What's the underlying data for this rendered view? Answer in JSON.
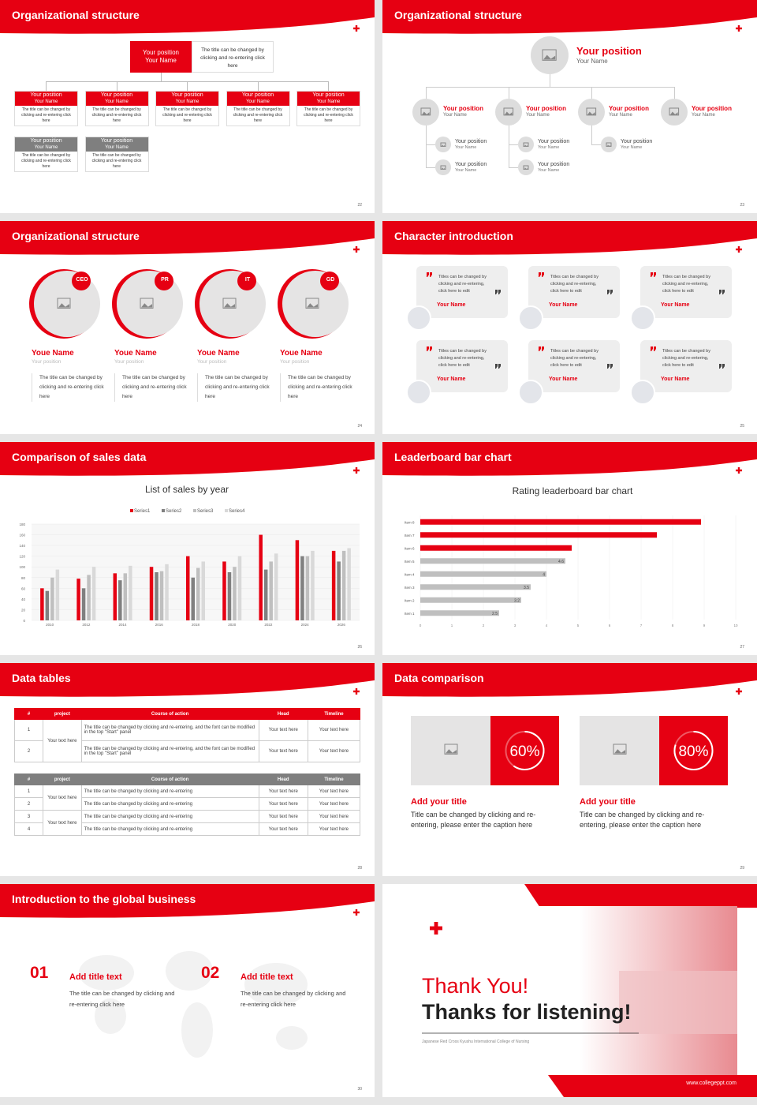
{
  "slides": [
    {
      "title": "Organizational structure",
      "page": "22",
      "top": {
        "position": "Your position",
        "name": "Your Name",
        "note": "The title can be changed by clicking and re-entering click here"
      },
      "boxes": [
        {
          "position": "Your position",
          "name": "Your Name",
          "text": "The title can be changed by clicking and re-entering click here"
        },
        {
          "position": "Your position",
          "name": "Your Name",
          "text": "The title can be changed by clicking and re-entering click here"
        },
        {
          "position": "Your position",
          "name": "Your Name",
          "text": "The title can be changed by clicking and re-entering click here"
        },
        {
          "position": "Your position",
          "name": "Your Name",
          "text": "The title can be changed by clicking and re-entering click here"
        },
        {
          "position": "Your position",
          "name": "Your Name",
          "text": "The title can be changed by clicking and re-entering click here"
        },
        {
          "position": "Your position",
          "name": "Your Name",
          "text": "The title can be changed by clicking and re-entering click here"
        },
        {
          "position": "Your position",
          "name": "Your Name",
          "text": "The title can be changed by clicking and re-entering click here"
        }
      ]
    },
    {
      "title": "Organizational structure",
      "page": "23",
      "top": {
        "position": "Your position",
        "name": "Your Name"
      },
      "groups": [
        {
          "position": "Your position",
          "name": "Your Name",
          "children": [
            {
              "position": "Your position",
              "name": "Your Name"
            },
            {
              "position": "Your position",
              "name": "Your Name"
            }
          ]
        },
        {
          "position": "Your position",
          "name": "Your Name",
          "children": [
            {
              "position": "Your position",
              "name": "Your Name"
            },
            {
              "position": "Your position",
              "name": "Your Name"
            }
          ]
        },
        {
          "position": "Your position",
          "name": "Your Name",
          "children": [
            {
              "position": "Your position",
              "name": "Your Name"
            }
          ]
        },
        {
          "position": "Your position",
          "name": "Your Name",
          "children": []
        }
      ]
    },
    {
      "title": "Organizational structure",
      "page": "24",
      "people": [
        {
          "badge": "CEO",
          "name": "Youe Name",
          "position": "Your position",
          "text": "The title can be changed by clicking and re-entering click here"
        },
        {
          "badge": "PR",
          "name": "Youe Name",
          "position": "Your position",
          "text": "The title can be changed by clicking and re-entering click here"
        },
        {
          "badge": "IT",
          "name": "Youe Name",
          "position": "Your position",
          "text": "The title can be changed by clicking and re-entering click here"
        },
        {
          "badge": "GD",
          "name": "Youe Name",
          "position": "Your position",
          "text": "The title can be changed by clicking and re-entering click here"
        }
      ]
    },
    {
      "title": "Character introduction",
      "page": "25",
      "cards": [
        {
          "text": "Titles can be changed by clicking and re-entering, click here to edit",
          "name": "Your Name"
        },
        {
          "text": "Titles can be changed by clicking and re-entering, click here to edit",
          "name": "Your Name"
        },
        {
          "text": "Titles can be changed by clicking and re-entering, click here to edit",
          "name": "Your Name"
        },
        {
          "text": "Titles can be changed by clicking and re-entering, click here to edit",
          "name": "Your Name"
        },
        {
          "text": "Titles can be changed by clicking and re-entering, click here to edit",
          "name": "Your Name"
        },
        {
          "text": "Titles can be changed by clicking and re-entering, click here to edit",
          "name": "Your Name"
        }
      ]
    },
    {
      "title": "Comparison of sales data",
      "page": "26"
    },
    {
      "title": "Leaderboard bar chart",
      "page": "27"
    },
    {
      "title": "Data tables",
      "page": "28",
      "table1": {
        "header": [
          "#",
          "project",
          "Course of action",
          "Head",
          "Timeline"
        ],
        "projects": [
          "Your text here"
        ],
        "rows": [
          [
            "1",
            "The title can be changed by clicking and re-entering, and the font can be modified in the top \"Start\" panel",
            "Your text here",
            "Your text here"
          ],
          [
            "2",
            "The title can be changed by clicking and re-entering, and the font can be modified in the top \"Start\" panel",
            "Your text here",
            "Your text here"
          ]
        ]
      },
      "table2": {
        "header": [
          "#",
          "project",
          "Course of action",
          "Head",
          "Timeline"
        ],
        "projects": [
          "Your text here",
          "Your text here"
        ],
        "rows": [
          [
            "1",
            "The title can be changed by clicking and re-entering",
            "Your text here",
            "Your text here"
          ],
          [
            "2",
            "The title can be changed by clicking and re-entering",
            "Your text here",
            "Your text here"
          ],
          [
            "3",
            "The title can be changed by clicking and re-entering",
            "Your text here",
            "Your text here"
          ],
          [
            "4",
            "The title can be changed by clicking and re-entering",
            "Your text here",
            "Your text here"
          ]
        ]
      }
    },
    {
      "title": "Data comparison",
      "page": "29",
      "items": [
        {
          "value": 60,
          "label": "60%",
          "title": "Add your title",
          "text": "Title can be changed by clicking and re-entering, please enter the caption here"
        },
        {
          "value": 80,
          "label": "80%",
          "title": "Add your title",
          "text": "Title can be changed by clicking and re-entering, please enter the caption here"
        }
      ]
    },
    {
      "title": "Introduction to the global business",
      "page": "30",
      "items": [
        {
          "number": "01",
          "title": "Add title text",
          "text": "The title can be changed by clicking and re-entering click here"
        },
        {
          "number": "02",
          "title": "Add title text",
          "text": "The title can be changed by clicking and re-entering click here"
        }
      ]
    },
    {
      "thanks": "Thank You!",
      "subtitle": "Thanks for listening!",
      "school": "Japanese Red Cross Kyushu International College of Nursing",
      "url": "www.collegeppt.com"
    }
  ],
  "chart_data": [
    {
      "type": "bar",
      "title": "List of sales by year",
      "categories": [
        "2010",
        "2012",
        "2014",
        "2016",
        "2018",
        "2020",
        "2022",
        "2024",
        "2026"
      ],
      "series": [
        {
          "name": "Series1",
          "color": "#e60012",
          "values": [
            60,
            78,
            88,
            100,
            120,
            110,
            160,
            150,
            130
          ]
        },
        {
          "name": "Series2",
          "color": "#808080",
          "values": [
            55,
            60,
            75,
            90,
            80,
            90,
            95,
            120,
            110
          ]
        },
        {
          "name": "Series3",
          "color": "#bfbfbf",
          "values": [
            80,
            85,
            88,
            92,
            98,
            100,
            110,
            120,
            130
          ]
        },
        {
          "name": "Series4",
          "color": "#d9d9d9",
          "values": [
            95,
            100,
            102,
            105,
            110,
            120,
            125,
            130,
            135
          ]
        }
      ],
      "ylim": [
        0,
        180
      ],
      "yticks": [
        0,
        20,
        40,
        60,
        80,
        100,
        120,
        140,
        160,
        180
      ],
      "grid": true
    },
    {
      "type": "hbar",
      "title": "Rating leaderboard bar chart",
      "categories": [
        "Item 1",
        "Item 2",
        "Item 3",
        "Item 4",
        "Item 5",
        "Item 6",
        "Item 7",
        "Item 8"
      ],
      "values": [
        2.5,
        3.2,
        3.5,
        4,
        4.6,
        4.8,
        7.5,
        8.9
      ],
      "value_labels": [
        "2.5",
        "3.2",
        "3.5",
        "4",
        "4.6",
        null,
        null,
        null
      ],
      "colors": [
        "#bfbfbf",
        "#bfbfbf",
        "#bfbfbf",
        "#bfbfbf",
        "#bfbfbf",
        "#e60012",
        "#e60012",
        "#e60012"
      ],
      "xlim": [
        0,
        10
      ],
      "xticks": [
        0,
        1,
        2,
        3,
        4,
        5,
        6,
        7,
        8,
        9,
        10
      ],
      "grid": true
    }
  ]
}
